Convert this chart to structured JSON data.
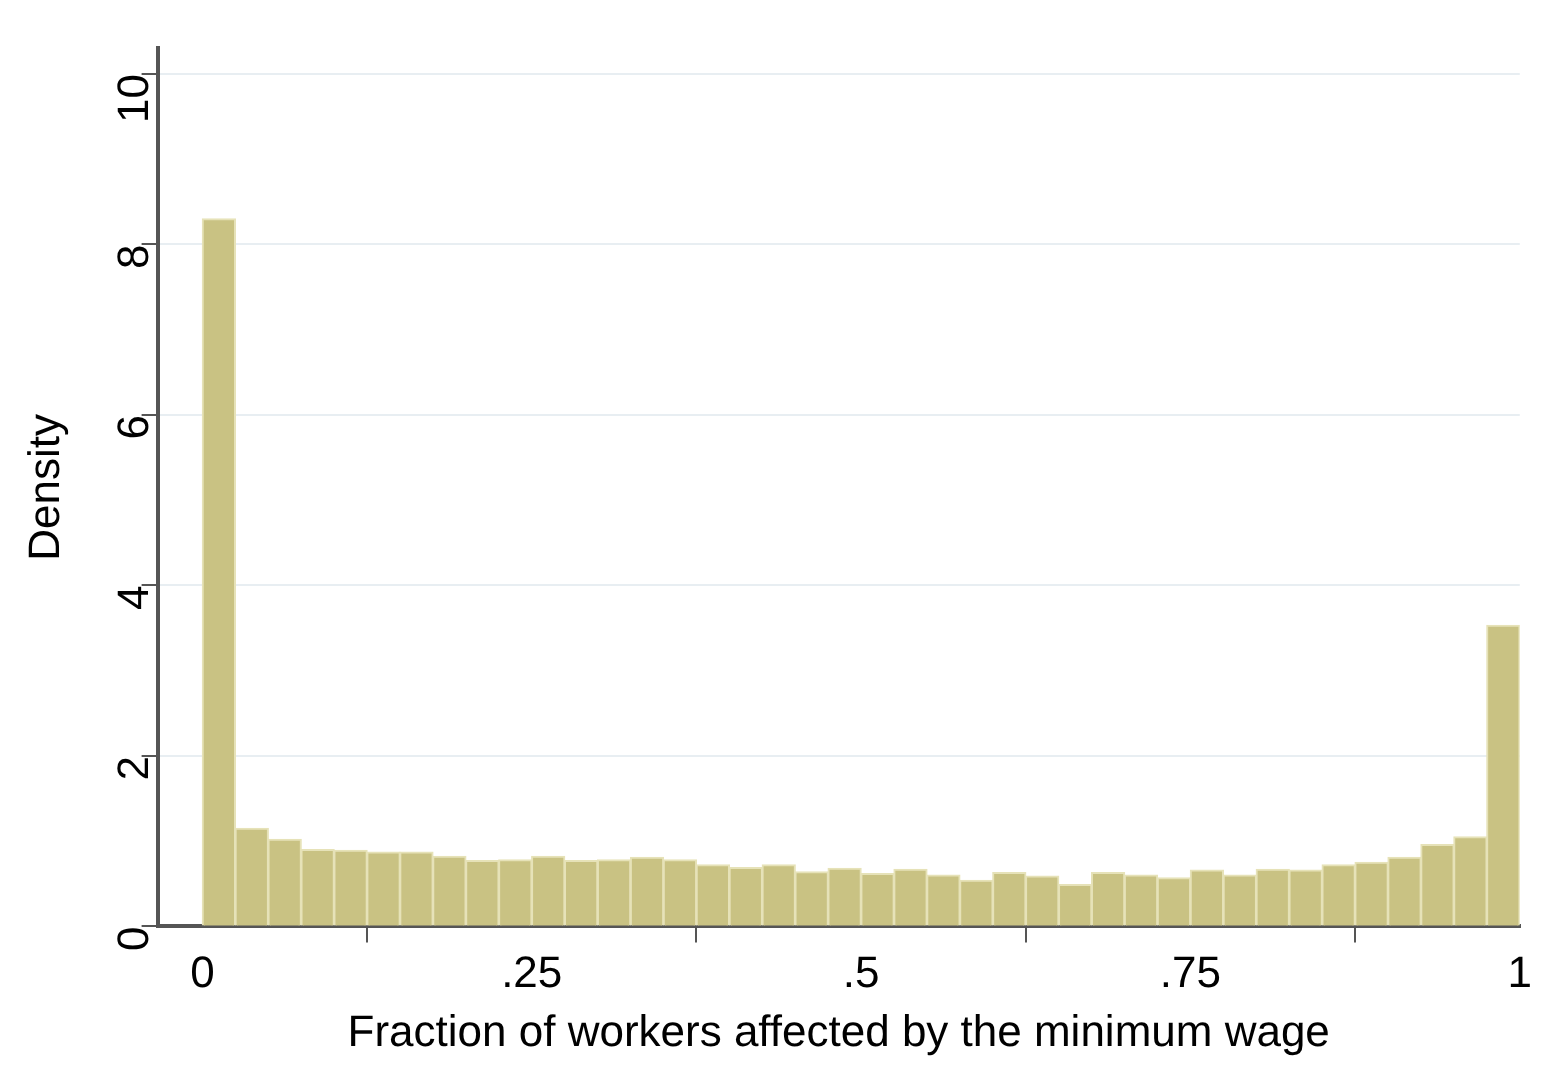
{
  "chart_data": {
    "type": "histogram",
    "xlabel": "Fraction of workers affected by the minimum wage",
    "ylabel": "Density",
    "bins": [
      0,
      0.025,
      0.05,
      0.075,
      0.1,
      0.125,
      0.15,
      0.175,
      0.2,
      0.225,
      0.25,
      0.275,
      0.3,
      0.325,
      0.35,
      0.375,
      0.4,
      0.425,
      0.45,
      0.475,
      0.5,
      0.525,
      0.55,
      0.575,
      0.6,
      0.625,
      0.65,
      0.675,
      0.7,
      0.725,
      0.75,
      0.775,
      0.8,
      0.825,
      0.85,
      0.875,
      0.9,
      0.925,
      0.95,
      0.975,
      1
    ],
    "values": [
      8.3,
      1.15,
      1.02,
      0.9,
      0.89,
      0.87,
      0.87,
      0.82,
      0.77,
      0.78,
      0.82,
      0.77,
      0.78,
      0.81,
      0.78,
      0.72,
      0.69,
      0.72,
      0.64,
      0.68,
      0.62,
      0.67,
      0.6,
      0.54,
      0.63,
      0.59,
      0.49,
      0.63,
      0.6,
      0.57,
      0.66,
      0.6,
      0.67,
      0.66,
      0.72,
      0.75,
      0.81,
      0.96,
      1.05,
      3.53
    ],
    "color": "#c9c283",
    "xlim": [
      -0.034,
      1
    ],
    "xticks": [
      {
        "value": 0,
        "label": "0"
      },
      {
        "value": 0.25,
        "label": ".25"
      },
      {
        "value": 0.5,
        "label": ".5"
      },
      {
        "value": 0.75,
        "label": ".75"
      },
      {
        "value": 1,
        "label": "1"
      }
    ],
    "ylim": [
      0,
      10.3
    ],
    "yticks": [
      0,
      2,
      4,
      6,
      8,
      10
    ],
    "grid": "y"
  }
}
